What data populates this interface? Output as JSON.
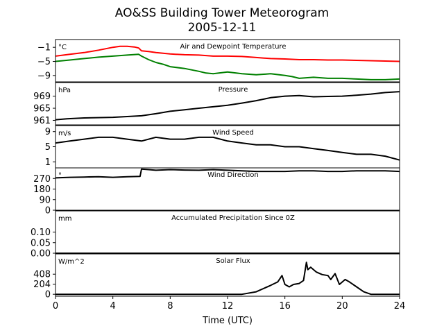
{
  "chart_data": {
    "type": "line",
    "title": "AO&SS Building Tower Meteorogram",
    "subtitle": "2005-12-11",
    "xlabel": "Time (UTC)",
    "xlim": [
      0,
      24
    ],
    "x_ticks": [
      0,
      4,
      8,
      12,
      16,
      20,
      24
    ],
    "grid": false,
    "panels": [
      {
        "id": "temperature",
        "title": "Air and Dewpoint Temperature",
        "unit": "°C",
        "ylim": [
          -10.8,
          1.2
        ],
        "y_ticks": [
          -1,
          -5,
          -9
        ],
        "y_tick_labels": [
          "−1",
          "−5",
          "−9"
        ],
        "series": [
          {
            "color": "#ff0000",
            "x": [
              0,
              1,
              2,
              3,
              4,
              4.5,
              5,
              5.5,
              5.8,
              6,
              6.5,
              7,
              8,
              9,
              10,
              11,
              12,
              13,
              14,
              15,
              16,
              17,
              18,
              19,
              20,
              21,
              22,
              23,
              24
            ],
            "y": [
              -3.5,
              -3.0,
              -2.5,
              -1.8,
              -1.0,
              -0.7,
              -0.7,
              -0.9,
              -1.2,
              -2.0,
              -2.2,
              -2.5,
              -2.9,
              -3.1,
              -3.2,
              -3.5,
              -3.5,
              -3.6,
              -3.9,
              -4.2,
              -4.3,
              -4.5,
              -4.5,
              -4.6,
              -4.6,
              -4.7,
              -4.8,
              -4.9,
              -5.0
            ]
          },
          {
            "color": "#008000",
            "x": [
              0,
              1,
              2,
              3,
              4,
              5,
              5.8,
              6,
              6.5,
              7,
              7.5,
              8,
              9,
              10,
              10.5,
              11,
              12,
              13,
              14,
              15,
              16,
              16.5,
              17,
              18,
              19,
              20,
              21,
              22,
              23,
              24
            ],
            "y": [
              -5.0,
              -4.6,
              -4.2,
              -3.8,
              -3.5,
              -3.2,
              -3.0,
              -3.5,
              -4.5,
              -5.3,
              -5.8,
              -6.5,
              -7.0,
              -7.8,
              -8.3,
              -8.5,
              -8.0,
              -8.5,
              -8.8,
              -8.5,
              -9.0,
              -9.3,
              -9.8,
              -9.5,
              -9.8,
              -9.8,
              -10.0,
              -10.2,
              -10.2,
              -10.0
            ]
          }
        ]
      },
      {
        "id": "pressure",
        "title": "Pressure",
        "unit": "hPa",
        "ylim": [
          959.5,
          973.5
        ],
        "y_ticks": [
          961,
          965,
          969
        ],
        "y_tick_labels": [
          "961",
          "965",
          "969"
        ],
        "series": [
          {
            "color": "#000000",
            "x": [
              0,
              0.8,
              2,
              4,
              6,
              7,
              8,
              9,
              10,
              11,
              12,
              13,
              14,
              15,
              16,
              17,
              18,
              19,
              20,
              21,
              22,
              23,
              24
            ],
            "y": [
              961.2,
              961.5,
              961.8,
              962.0,
              962.5,
              963.2,
              964.0,
              964.5,
              965.0,
              965.5,
              966.0,
              966.7,
              967.5,
              968.5,
              969.0,
              969.2,
              968.8,
              968.9,
              969.0,
              969.3,
              969.7,
              970.2,
              970.5
            ]
          }
        ]
      },
      {
        "id": "wind_speed",
        "title": "Wind Speed",
        "unit": "m/s",
        "ylim": [
          -0.6,
          10.6
        ],
        "y_ticks": [
          1,
          5,
          9
        ],
        "y_tick_labels": [
          "1",
          "5",
          "9"
        ],
        "series": [
          {
            "color": "#000000",
            "x": [
              0,
              1,
              2,
              3,
              4,
              5,
              6,
              7,
              8,
              9,
              10,
              11,
              12,
              13,
              14,
              15,
              16,
              17,
              18,
              19,
              20,
              21,
              22,
              23,
              24
            ],
            "y": [
              6.0,
              6.5,
              7.0,
              7.5,
              7.5,
              7.0,
              6.5,
              7.5,
              7.0,
              7.0,
              7.5,
              7.5,
              6.5,
              6.0,
              5.5,
              5.5,
              5.0,
              5.0,
              4.5,
              4.0,
              3.5,
              3.0,
              3.0,
              2.5,
              1.5
            ]
          }
        ]
      },
      {
        "id": "wind_direction",
        "title": "Wind Direction",
        "unit": "°",
        "ylim": [
          0,
          360
        ],
        "y_ticks": [
          0,
          90,
          180,
          270
        ],
        "y_tick_labels": [
          "0",
          "90",
          "180",
          "270"
        ],
        "series": [
          {
            "color": "#000000",
            "x": [
              0,
              1,
              2,
              3,
              4,
              5,
              5.9,
              6.0,
              6.5,
              7,
              8,
              9,
              10,
              11,
              12,
              13,
              14,
              15,
              16,
              17,
              18,
              19,
              20,
              21,
              22,
              23,
              24
            ],
            "y": [
              275,
              280,
              282,
              285,
              280,
              285,
              288,
              350,
              345,
              340,
              345,
              342,
              340,
              345,
              340,
              335,
              330,
              330,
              330,
              335,
              335,
              330,
              330,
              335,
              335,
              335,
              330
            ]
          }
        ]
      },
      {
        "id": "precipitation",
        "title": "Accumulated Precipitation Since 0Z",
        "unit": "mm",
        "ylim": [
          0,
          0.2
        ],
        "y_ticks": [
          0,
          0.05,
          0.1
        ],
        "y_tick_labels": [
          "0.00",
          "0.05",
          "0.10"
        ],
        "series": [
          {
            "color": "#000000",
            "x": [
              0,
              24
            ],
            "y": [
              0,
              0
            ]
          }
        ]
      },
      {
        "id": "solar_flux",
        "title": "Solar Flux",
        "unit": "W/m^2",
        "ylim": [
          -40,
          820
        ],
        "y_ticks": [
          0,
          204,
          408
        ],
        "y_tick_labels": [
          "0",
          "204",
          "408"
        ],
        "series": [
          {
            "color": "#000000",
            "x": [
              0,
              13,
              14,
              15,
              15.5,
              15.8,
              16.0,
              16.3,
              16.6,
              17.0,
              17.3,
              17.5,
              17.6,
              17.8,
              18.2,
              18.6,
              19.0,
              19.2,
              19.5,
              19.8,
              20.2,
              20.5,
              21.0,
              21.5,
              22.0,
              24
            ],
            "y": [
              0,
              0,
              50,
              180,
              250,
              380,
              200,
              150,
              200,
              220,
              280,
              650,
              500,
              550,
              450,
              400,
              380,
              300,
              420,
              200,
              300,
              250,
              150,
              50,
              0,
              0
            ]
          }
        ]
      }
    ]
  }
}
